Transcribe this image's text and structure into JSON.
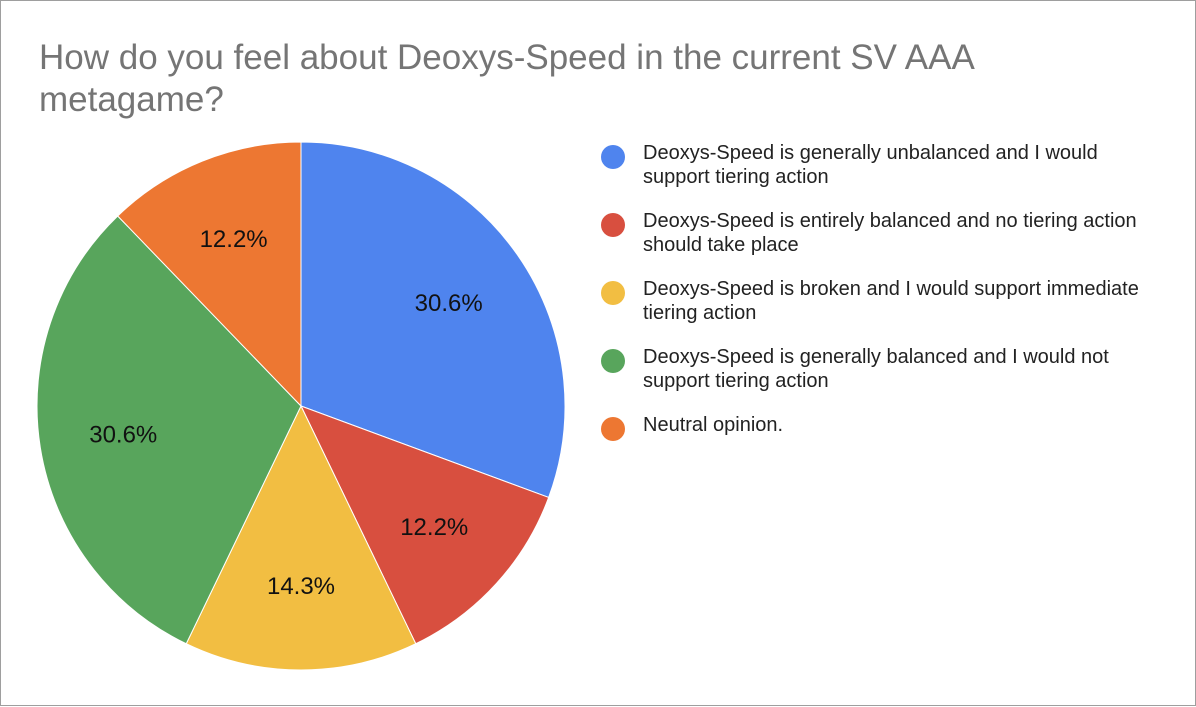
{
  "chart_data": {
    "type": "pie",
    "title": "How do you feel about Deoxys-Speed in the current SV AAA metagame?",
    "legend_position": "right",
    "slices": [
      {
        "name": "Deoxys-Speed is generally unbalanced and I would support tiering action",
        "value": 30.6,
        "label": "30.6%",
        "color": "#4f84ee"
      },
      {
        "name": "Deoxys-Speed is entirely balanced and no tiering action should take place",
        "value": 12.2,
        "label": "12.2%",
        "color": "#d84f3f"
      },
      {
        "name": "Deoxys-Speed is broken and I would support immediate tiering action",
        "value": 14.3,
        "label": "14.3%",
        "color": "#f2be42"
      },
      {
        "name": "Deoxys-Speed is generally balanced and I would not support tiering action",
        "value": 30.6,
        "label": "30.6%",
        "color": "#58a55c"
      },
      {
        "name": "Neutral opinion.",
        "value": 12.2,
        "label": "12.2%",
        "color": "#ed7732"
      }
    ]
  }
}
